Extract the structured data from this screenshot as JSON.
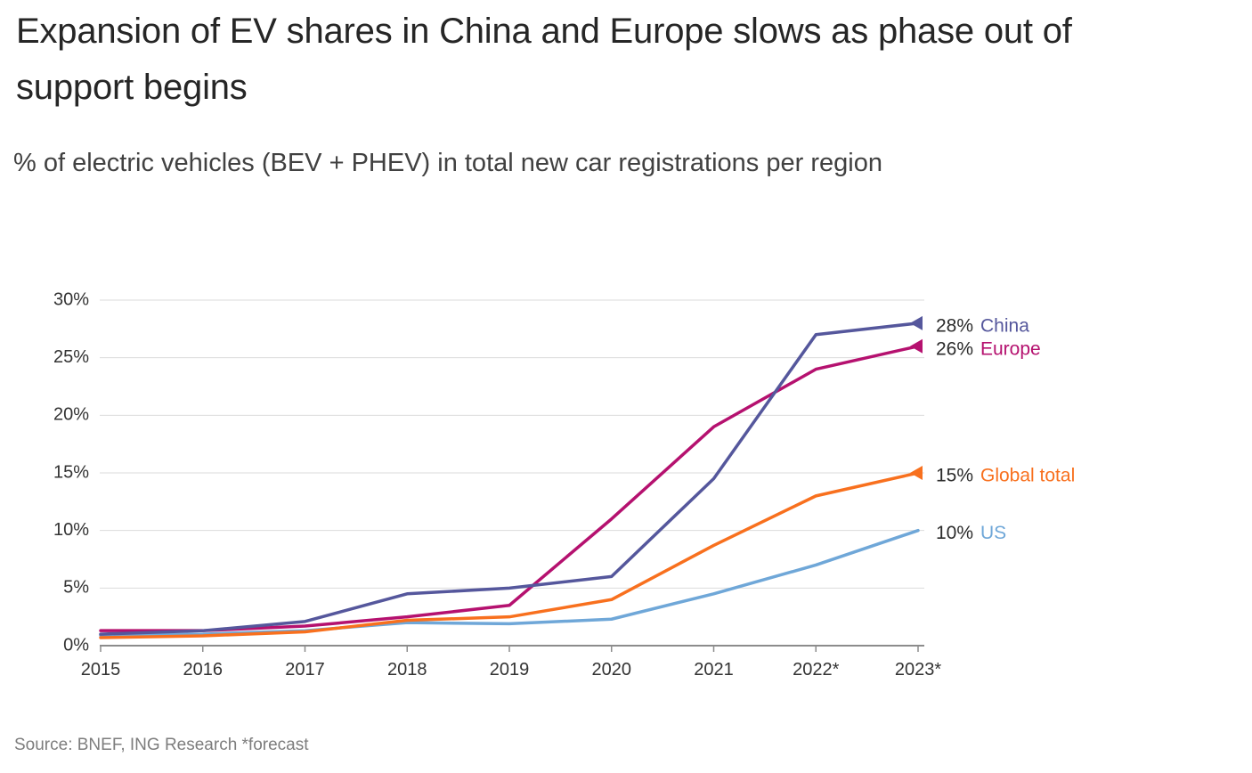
{
  "chart_data": {
    "type": "line",
    "title": "Expansion of EV shares in China and Europe slows as phase out of support begins",
    "subtitle": "% of electric vehicles (BEV + PHEV) in total new car registrations per region",
    "source": "Source: BNEF, ING Research *forecast",
    "categories": [
      "2015",
      "2016",
      "2017",
      "2018",
      "2019",
      "2020",
      "2021",
      "2022*",
      "2023*"
    ],
    "y_ticks": [
      "0%",
      "5%",
      "10%",
      "15%",
      "20%",
      "25%",
      "30%"
    ],
    "y_tick_values": [
      0,
      5,
      10,
      15,
      20,
      25,
      30
    ],
    "ylim": [
      0,
      30
    ],
    "grid": true,
    "legend_position": "end-of-line-labels-right",
    "series": [
      {
        "name": "China",
        "color": "#55579c",
        "values": [
          1.0,
          1.3,
          2.1,
          4.5,
          5.0,
          6.0,
          14.5,
          27.0,
          28
        ],
        "end_label_value": "28%",
        "end_label_name": "China",
        "marker": true
      },
      {
        "name": "Europe",
        "color": "#b5116f",
        "values": [
          1.3,
          1.3,
          1.7,
          2.5,
          3.5,
          11.0,
          19.0,
          24.0,
          26
        ],
        "end_label_value": "26%",
        "end_label_name": "Europe",
        "marker": true
      },
      {
        "name": "Global total",
        "color": "#f8701e",
        "values": [
          0.7,
          0.85,
          1.2,
          2.2,
          2.5,
          4.0,
          8.7,
          13.0,
          15
        ],
        "end_label_value": "15%",
        "end_label_name": "Global total",
        "marker": true
      },
      {
        "name": "US",
        "color": "#6fa7d8",
        "values": [
          0.9,
          1.0,
          1.3,
          2.0,
          1.9,
          2.3,
          4.5,
          7.0,
          10
        ],
        "end_label_value": "10%",
        "end_label_name": "US",
        "marker": false
      }
    ]
  },
  "style_colors": {
    "gridline": "#dbdbdb",
    "axis_line": "#8c8c8c",
    "tick_label": "#333333",
    "end_label_value": "#2b2b2b"
  }
}
